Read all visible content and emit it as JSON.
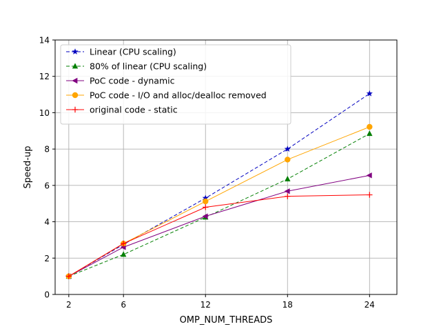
{
  "chart_data": {
    "type": "line",
    "xlabel": "OMP_NUM_THREADS",
    "ylabel": "Speed-up",
    "x": [
      2,
      6,
      12,
      18,
      24
    ],
    "xlim": [
      1,
      26
    ],
    "ylim": [
      0,
      14
    ],
    "xticks": [
      "2",
      "6",
      "12",
      "18",
      "24"
    ],
    "yticks": [
      "0",
      "2",
      "4",
      "6",
      "8",
      "10",
      "12",
      "14"
    ],
    "grid": true,
    "legend_position": "top-left",
    "series": [
      {
        "name": "Linear (CPU scaling)",
        "values": [
          1,
          2.75,
          5.3,
          8.0,
          11.05
        ],
        "color": "#0000bf",
        "dash": "dashed",
        "marker": "star"
      },
      {
        "name": "80% of linear (CPU scaling)",
        "values": [
          1,
          2.2,
          4.25,
          6.35,
          8.85
        ],
        "color": "#007f00",
        "dash": "dashed",
        "marker": "triangle-up"
      },
      {
        "name": "PoC code - dynamic",
        "values": [
          1,
          2.6,
          4.3,
          5.68,
          6.55
        ],
        "color": "#800080",
        "dash": "solid",
        "marker": "triangle-left"
      },
      {
        "name": "PoC code - I/O and alloc/dealloc removed",
        "values": [
          1,
          2.8,
          5.12,
          7.42,
          9.22
        ],
        "color": "#ffa500",
        "dash": "solid",
        "marker": "circle"
      },
      {
        "name": "original code - static",
        "values": [
          1,
          2.8,
          4.8,
          5.4,
          5.48
        ],
        "color": "#ff0000",
        "dash": "solid",
        "marker": "plus"
      }
    ]
  }
}
